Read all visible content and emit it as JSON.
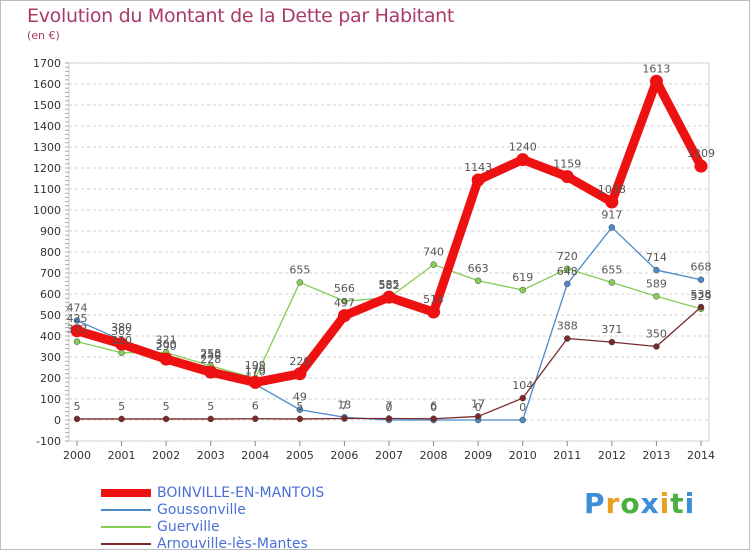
{
  "header": {
    "title": "Evolution du Montant de la Dette par Habitant",
    "subtitle": "(en €)"
  },
  "logo": {
    "text": "Proxiti"
  },
  "chart_data": {
    "type": "line",
    "title": "Evolution du Montant de la Dette par Habitant",
    "subtitle": "(en €)",
    "xlabel": "",
    "ylabel": "",
    "ylim": [
      -100,
      1700
    ],
    "yticks": [
      -100,
      0,
      100,
      200,
      300,
      400,
      500,
      600,
      700,
      800,
      900,
      1000,
      1100,
      1200,
      1300,
      1400,
      1500,
      1600,
      1700
    ],
    "x": [
      "2000",
      "2001",
      "2002",
      "2003",
      "2004",
      "2005",
      "2006",
      "2007",
      "2008",
      "2009",
      "2010",
      "2011",
      "2012",
      "2013",
      "2014"
    ],
    "grid": "horizontal dashed",
    "legend_position": "bottom-left",
    "series": [
      {
        "name": "BOINVILLE-EN-MANTOIS",
        "color": "#ee1111",
        "width": 9,
        "values": [
          425,
          362,
          290,
          228,
          179,
          220,
          497,
          585,
          514,
          1143,
          1240,
          1159,
          1038,
          1613,
          1209
        ]
      },
      {
        "name": "Goussonville",
        "color": "#4a8ac8",
        "width": 1.3,
        "values": [
          474,
          380,
          300,
          250,
          170,
          49,
          13,
          0,
          0,
          0,
          0,
          648,
          917,
          714,
          668
        ]
      },
      {
        "name": "Guerville",
        "color": "#86cc55",
        "width": 1.3,
        "values": [
          373,
          320,
          321,
          258,
          199,
          655,
          566,
          582,
          740,
          663,
          619,
          720,
          655,
          589,
          529
        ]
      },
      {
        "name": "Arnouville-lès-Mantes",
        "color": "#7a2a2a",
        "width": 1.3,
        "values": [
          5,
          5,
          5,
          5,
          6,
          5,
          7,
          7,
          6,
          17,
          104,
          388,
          371,
          350,
          538
        ]
      }
    ]
  }
}
